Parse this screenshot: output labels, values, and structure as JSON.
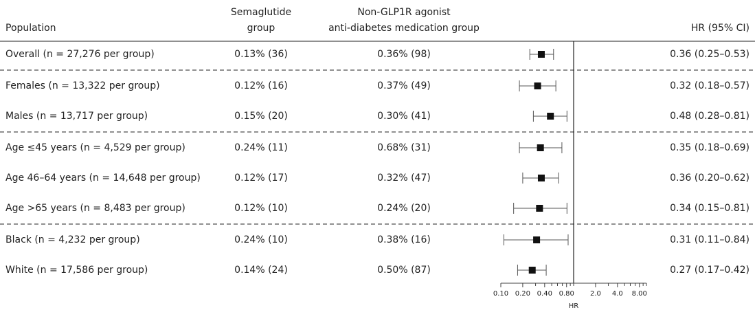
{
  "chart_data": {
    "type": "forest",
    "headers": {
      "population": "Population",
      "semaglutide": [
        "Semaglutide",
        "group"
      ],
      "comparator": [
        "Non-GLP1R agonist",
        "anti-diabetes medication group"
      ],
      "hr": "HR (95% CI)"
    },
    "xlabel": "HR",
    "xscale": "log",
    "xlim": [
      0.1,
      10
    ],
    "ref_line": 1,
    "xticks": [
      {
        "value": 0.1,
        "label": "0.10"
      },
      {
        "value": 0.2,
        "label": "0.20"
      },
      {
        "value": 0.4,
        "label": "0.40"
      },
      {
        "value": 0.8,
        "label": "0.80"
      },
      {
        "value": 2,
        "label": "2.0"
      },
      {
        "value": 4,
        "label": "4.0"
      },
      {
        "value": 8,
        "label": "8.00"
      }
    ],
    "xminorticks": [
      0.3,
      0.5,
      0.6,
      0.7,
      0.9,
      1,
      3,
      5,
      6,
      7,
      9,
      10
    ],
    "marker_color": "#111111",
    "ci_color": "#555555",
    "groups": [
      [
        {
          "population": "Overall (n = 27,276 per group)",
          "semaglutide": "0.13% (36)",
          "comparator": "0.36% (98)",
          "hr": 0.36,
          "ci": [
            0.25,
            0.53
          ],
          "hr_label": "0.36 (0.25–0.53)"
        }
      ],
      [
        {
          "population": "Females (n = 13,322 per group)",
          "semaglutide": "0.12% (16)",
          "comparator": "0.37% (49)",
          "hr": 0.32,
          "ci": [
            0.18,
            0.57
          ],
          "hr_label": "0.32 (0.18–0.57)"
        },
        {
          "population": "Males (n = 13,717 per group)",
          "semaglutide": "0.15% (20)",
          "comparator": "0.30% (41)",
          "hr": 0.48,
          "ci": [
            0.28,
            0.81
          ],
          "hr_label": "0.48 (0.28–0.81)"
        }
      ],
      [
        {
          "population": "Age ≤45 years (n = 4,529 per group)",
          "semaglutide": "0.24% (11)",
          "comparator": "0.68% (31)",
          "hr": 0.35,
          "ci": [
            0.18,
            0.69
          ],
          "hr_label": "0.35 (0.18–0.69)"
        },
        {
          "population": "Age 46–64 years (n = 14,648 per group)",
          "semaglutide": "0.12% (17)",
          "comparator": "0.32% (47)",
          "hr": 0.36,
          "ci": [
            0.2,
            0.62
          ],
          "hr_label": "0.36 (0.20–0.62)"
        },
        {
          "population": "Age >65 years (n = 8,483 per group)",
          "semaglutide": "0.12% (10)",
          "comparator": "0.24% (20)",
          "hr": 0.34,
          "ci": [
            0.15,
            0.81
          ],
          "hr_label": "0.34 (0.15–0.81)"
        }
      ],
      [
        {
          "population": "Black (n = 4,232 per group)",
          "semaglutide": "0.24% (10)",
          "comparator": "0.38% (16)",
          "hr": 0.31,
          "ci": [
            0.11,
            0.84
          ],
          "hr_label": "0.31 (0.11–0.84)"
        },
        {
          "population": "White (n = 17,586 per group)",
          "semaglutide": "0.14% (24)",
          "comparator": "0.50% (87)",
          "hr": 0.27,
          "ci": [
            0.17,
            0.42
          ],
          "hr_label": "0.27 (0.17–0.42)"
        }
      ]
    ]
  }
}
